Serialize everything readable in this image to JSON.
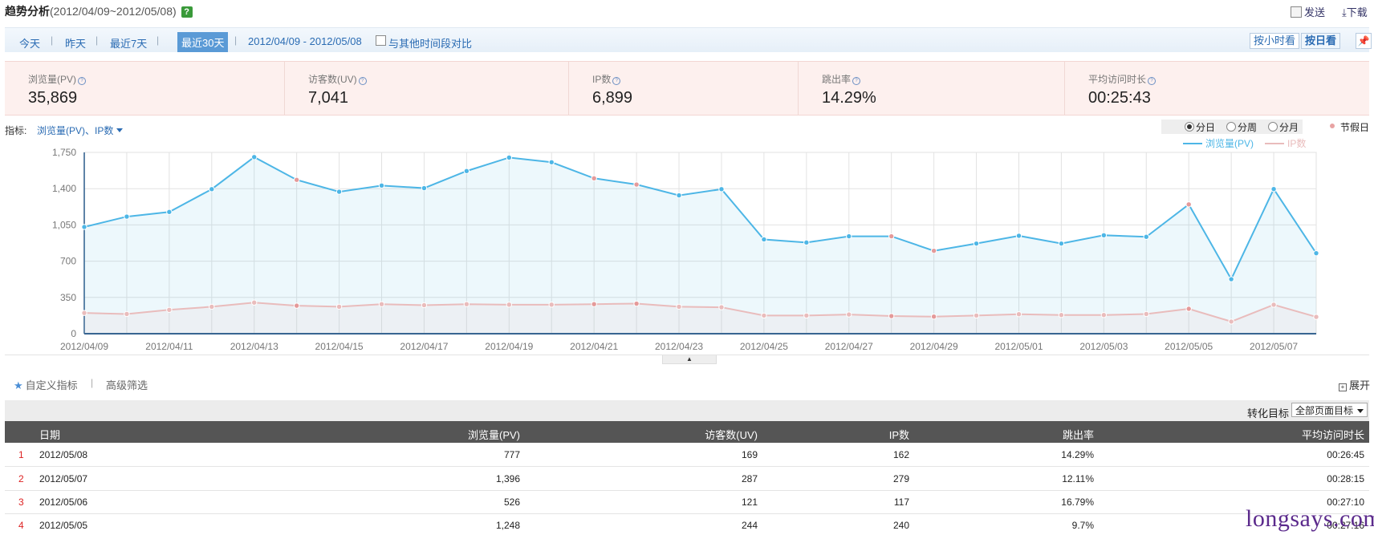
{
  "header": {
    "title": "趋势分析",
    "date_range": "(2012/04/09~2012/05/08)",
    "help": "?",
    "send_label": "发送",
    "download_label": "下载"
  },
  "toolbar": {
    "today": "今天",
    "yesterday": "昨天",
    "last7": "最近7天",
    "last30": "最近30天",
    "date_range": "2012/04/09 - 2012/05/08",
    "compare_label": "与其他时间段对比",
    "by_hour": "按小时看",
    "by_day": "按日看"
  },
  "stats": [
    {
      "label": "浏览量(PV)",
      "value": "35,869"
    },
    {
      "label": "访客数(UV)",
      "value": "7,041"
    },
    {
      "label": "IP数",
      "value": "6,899"
    },
    {
      "label": "跳出率",
      "value": "14.29%"
    },
    {
      "label": "平均访问时长",
      "value": "00:25:43"
    }
  ],
  "chart_header": {
    "metric_label": "指标:",
    "metric_value": "浏览量(PV)、IP数",
    "by_day": "分日",
    "by_week": "分周",
    "by_month": "分月",
    "holiday": "节假日"
  },
  "chart_data": {
    "type": "area",
    "x": [
      "2012/04/09",
      "2012/04/10",
      "2012/04/11",
      "2012/04/12",
      "2012/04/13",
      "2012/04/14",
      "2012/04/15",
      "2012/04/16",
      "2012/04/17",
      "2012/04/18",
      "2012/04/19",
      "2012/04/20",
      "2012/04/21",
      "2012/04/22",
      "2012/04/23",
      "2012/04/24",
      "2012/04/25",
      "2012/04/26",
      "2012/04/27",
      "2012/04/28",
      "2012/04/29",
      "2012/04/30",
      "2012/05/01",
      "2012/05/02",
      "2012/05/03",
      "2012/05/04",
      "2012/05/05",
      "2012/05/06",
      "2012/05/07",
      "2012/05/08"
    ],
    "x_tick_labels": [
      "2012/04/09",
      "2012/04/11",
      "2012/04/13",
      "2012/04/15",
      "2012/04/17",
      "2012/04/19",
      "2012/04/21",
      "2012/04/23",
      "2012/04/25",
      "2012/04/27",
      "2012/04/29",
      "2012/05/01",
      "2012/05/03",
      "2012/05/05",
      "2012/05/07"
    ],
    "y_ticks": [
      "0",
      "350",
      "700",
      "1,050",
      "1,400",
      "1,750"
    ],
    "ylim": [
      0,
      1750
    ],
    "grid": true,
    "legend_position": "top-right",
    "holiday_dates": [
      "2012/04/14",
      "2012/04/21",
      "2012/04/22",
      "2012/04/28",
      "2012/04/29",
      "2012/05/05"
    ],
    "series": [
      {
        "name": "浏览量(PV)",
        "color": "#4db6e6",
        "values": [
          1030,
          1130,
          1175,
          1395,
          1705,
          1485,
          1370,
          1430,
          1405,
          1570,
          1700,
          1655,
          1500,
          1440,
          1335,
          1395,
          910,
          880,
          940,
          940,
          800,
          870,
          945,
          870,
          950,
          935,
          1248,
          526,
          1396,
          777
        ]
      },
      {
        "name": "IP数",
        "color": "#e9bcbc",
        "values": [
          200,
          190,
          230,
          260,
          300,
          270,
          260,
          285,
          275,
          285,
          280,
          280,
          285,
          290,
          260,
          255,
          175,
          175,
          185,
          170,
          165,
          175,
          188,
          180,
          180,
          190,
          240,
          117,
          279,
          162
        ]
      }
    ]
  },
  "filters": {
    "custom_metrics": "自定义指标",
    "advanced": "高级筛选",
    "expand": "展开"
  },
  "conversion": {
    "label": "转化目标",
    "selected": "全部页面目标"
  },
  "table": {
    "headers": [
      "日期",
      "浏览量(PV)",
      "访客数(UV)",
      "IP数",
      "跳出率",
      "平均访问时长"
    ],
    "rows": [
      {
        "idx": "1",
        "date": "2012/05/08",
        "pv": "777",
        "uv": "169",
        "ip": "162",
        "bounce": "14.29%",
        "avg": "00:26:45"
      },
      {
        "idx": "2",
        "date": "2012/05/07",
        "pv": "1,396",
        "uv": "287",
        "ip": "279",
        "bounce": "12.11%",
        "avg": "00:28:15"
      },
      {
        "idx": "3",
        "date": "2012/05/06",
        "pv": "526",
        "uv": "121",
        "ip": "117",
        "bounce": "16.79%",
        "avg": "00:27:10"
      },
      {
        "idx": "4",
        "date": "2012/05/05",
        "pv": "1,248",
        "uv": "244",
        "ip": "240",
        "bounce": "9.7%",
        "avg": "00:27:16"
      }
    ]
  },
  "watermark": "longsays.com"
}
